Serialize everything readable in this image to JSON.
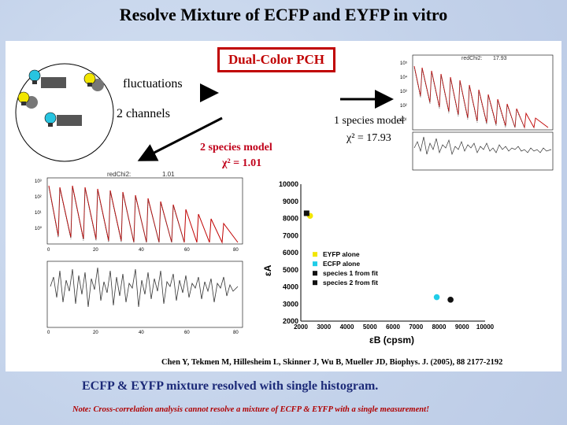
{
  "title": "Resolve Mixture of ECFP and EYFP in vitro",
  "diagram": {
    "fluctuations_label": "fluctuations",
    "channels_label": "2 channels",
    "method_label": "Dual-Color PCH",
    "one_species_label": "1 species model",
    "one_species_chi": "χ² = 17.93",
    "two_species_label": "2 species model",
    "two_species_chi": "χ² = 1.01"
  },
  "plot_one": {
    "header_label": "redChi2:",
    "header_value": "17.93"
  },
  "plot_two": {
    "header_label": "redChi2:",
    "header_value": "1.01"
  },
  "chart_data": {
    "type": "scatter",
    "ylabel": "εA",
    "xlabel": "εB (cpsm)",
    "xlim": [
      2000,
      10000
    ],
    "ylim": [
      2000,
      10000
    ],
    "xticks": [
      "2000",
      "3000",
      "4000",
      "5000",
      "6000",
      "7000",
      "8000",
      "9000",
      "10000"
    ],
    "yticks": [
      "2000",
      "3000",
      "4000",
      "5000",
      "6000",
      "7000",
      "8000",
      "9000",
      "10000"
    ],
    "series": [
      {
        "name": "EYFP alone",
        "color": "#f2e600",
        "points": [
          [
            2400,
            8150
          ]
        ]
      },
      {
        "name": "ECFP alone",
        "color": "#20cde8",
        "points": [
          [
            7900,
            3400
          ]
        ]
      },
      {
        "name": "species 1 from fit",
        "color": "#111111",
        "points": [
          [
            2250,
            8300
          ]
        ]
      },
      {
        "name": "species 2 from fit",
        "color": "#111111",
        "points": [
          [
            8500,
            3250
          ]
        ]
      }
    ]
  },
  "citation": "Chen Y, Tekmen M, Hillesheim L, Skinner J, Wu B, Mueller JD, Biophys. J. (2005), 88 2177-2192",
  "summary": "ECFP & EYFP mixture resolved with single histogram.",
  "note": "Note: Cross-correlation analysis cannot resolve a mixture of ECFP & EYFP with a single measurement!"
}
